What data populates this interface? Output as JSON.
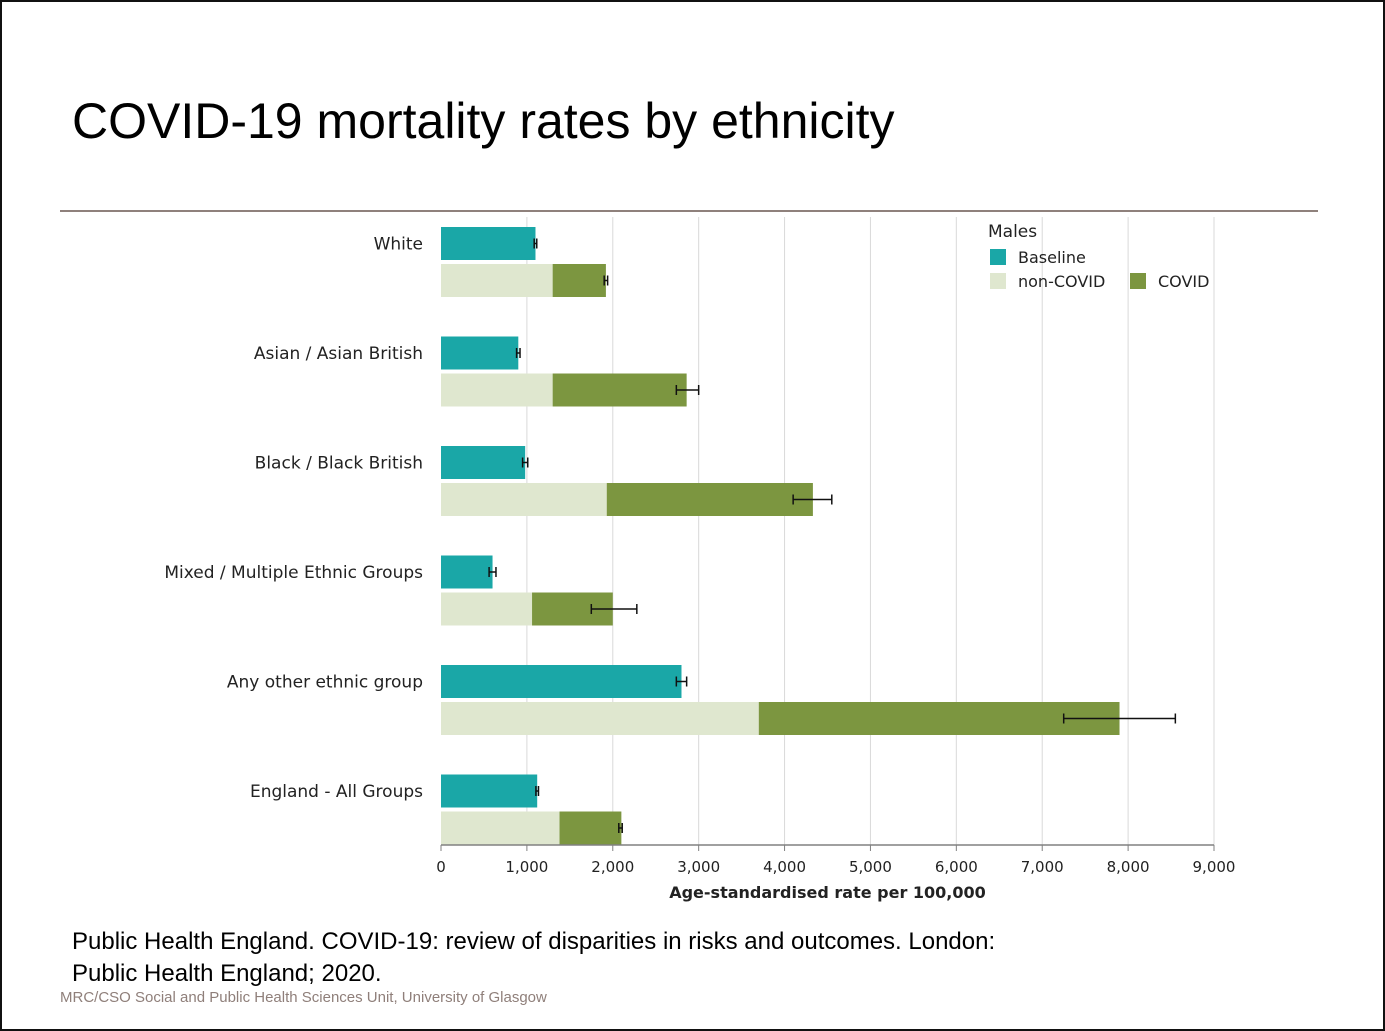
{
  "slide": {
    "title": "COVID-19 mortality rates by ethnicity",
    "citation_line1": "Public Health England. COVID-19: review of disparities in risks and outcomes. London:",
    "citation_line2": "Public Health England; 2020.",
    "footer": "MRC/CSO Social and Public Health Sciences Unit, University of Glasgow"
  },
  "chart_data": {
    "type": "bar",
    "orientation": "horizontal",
    "stacked_second_bar": true,
    "legend_title": "Males",
    "legend_position": "top-right",
    "xlabel": "Age-standardised rate per 100,000",
    "xlim": [
      0,
      9000
    ],
    "x_ticks": [
      0,
      1000,
      2000,
      3000,
      4000,
      5000,
      6000,
      7000,
      8000,
      9000
    ],
    "x_tick_labels": [
      "0",
      "1,000",
      "2,000",
      "3,000",
      "4,000",
      "5,000",
      "6,000",
      "7,000",
      "8,000",
      "9,000"
    ],
    "grid": "vertical",
    "categories": [
      "White",
      "Asian / Asian British",
      "Black / Black British",
      "Mixed / Multiple Ethnic Groups",
      "Any other ethnic group",
      "England - All Groups"
    ],
    "series": [
      {
        "name": "Baseline",
        "color": "#1aa7a7",
        "values": [
          1100,
          900,
          980,
          600,
          2800,
          1120
        ],
        "error_low": [
          1085,
          880,
          950,
          560,
          2740,
          1105
        ],
        "error_high": [
          1115,
          920,
          1010,
          640,
          2860,
          1135
        ]
      },
      {
        "name": "non-COVID",
        "color": "#dfe7cf",
        "values": [
          1300,
          1300,
          1930,
          1060,
          3700,
          1380
        ]
      },
      {
        "name": "COVID",
        "color": "#7c9640",
        "values": [
          620,
          1560,
          2400,
          940,
          4200,
          720
        ],
        "total_error_low": [
          1900,
          2740,
          4100,
          1750,
          7250,
          2070
        ],
        "total_error_high": [
          1940,
          3000,
          4550,
          2280,
          8550,
          2110
        ]
      }
    ],
    "colors": {
      "grid": "#d9d9d9",
      "axis": "#808080",
      "text": "#222222"
    }
  }
}
